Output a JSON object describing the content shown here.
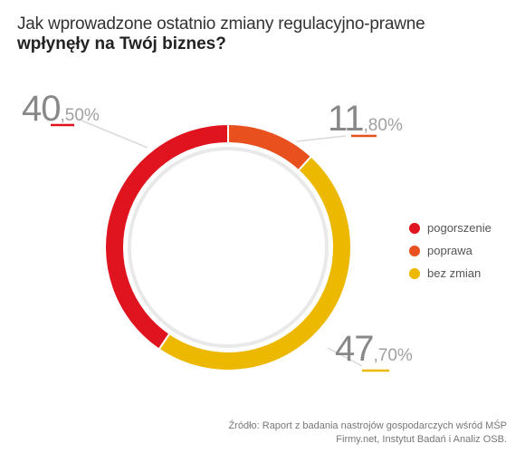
{
  "title": {
    "line1": "Jak wprowadzone ostatnio zmiany regulacyjno-prawne",
    "line2": "wpłynęły na Twój biznes?"
  },
  "chart_data": {
    "type": "pie",
    "style": "donut",
    "categories": [
      "pogorszenie",
      "poprawa",
      "bez zmian"
    ],
    "values": [
      40.5,
      11.8,
      47.7
    ],
    "labels": [
      {
        "main": "40",
        "decimal": ",50%"
      },
      {
        "main": "11",
        "decimal": ",80%"
      },
      {
        "main": "47",
        "decimal": ",70%"
      }
    ],
    "colors": [
      "#e0141e",
      "#e8501e",
      "#edb900"
    ],
    "legend_position": "right"
  },
  "legend": [
    {
      "label": "pogorszenie",
      "color": "#e0141e"
    },
    {
      "label": "poprawa",
      "color": "#e8501e"
    },
    {
      "label": "bez zmian",
      "color": "#edb900"
    }
  ],
  "source": {
    "line1": "Źródło: Raport z badania nastrojów gospodarczych wśród MŚP",
    "line2": "Firmy.net, Instytut Badań i Analiz OSB."
  }
}
